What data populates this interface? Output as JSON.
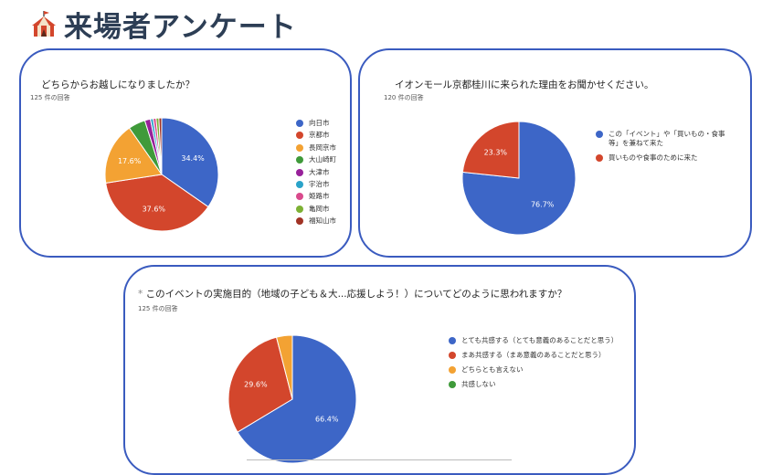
{
  "page": {
    "title": "来場者アンケート"
  },
  "chart_data": [
    {
      "type": "pie",
      "title": "どちらからお越しになりましたか？",
      "subtitle": "125 件の回答",
      "slices": [
        {
          "label": "向日市",
          "value": 34.4,
          "color": "#3d66c7",
          "show_label": true
        },
        {
          "label": "京都市",
          "value": 37.6,
          "color": "#d3462c",
          "show_label": true
        },
        {
          "label": "長岡京市",
          "value": 17.6,
          "color": "#f3a233",
          "show_label": true
        },
        {
          "label": "大山崎町",
          "value": 4.8,
          "color": "#3f9a3a",
          "show_label": false
        },
        {
          "label": "大津市",
          "value": 1.6,
          "color": "#98219a",
          "show_label": false
        },
        {
          "label": "宇治市",
          "value": 0.8,
          "color": "#2aa3c9",
          "show_label": false
        },
        {
          "label": "姫路市",
          "value": 0.8,
          "color": "#d94a8c",
          "show_label": false
        },
        {
          "label": "亀岡市",
          "value": 0.8,
          "color": "#7db134",
          "show_label": false
        },
        {
          "label": "福知山市",
          "value": 0.8,
          "color": "#a13325",
          "show_label": false
        }
      ]
    },
    {
      "type": "pie",
      "title": "イオンモール京都桂川に来られた理由をお聞かせください。",
      "subtitle": "120 件の回答",
      "slices": [
        {
          "label": "この「イベント」や「買いもの・食事等」を兼ねて来た",
          "value": 76.7,
          "color": "#3d66c7",
          "show_label": true
        },
        {
          "label": "買いものや食事のために来た",
          "value": 23.3,
          "color": "#d3462c",
          "show_label": true
        }
      ]
    },
    {
      "type": "pie",
      "title": "このイベントの実施目的（地域の子ども＆大...応援しよう！）についてどのように思われますか？",
      "subtitle": "125 件の回答",
      "slices": [
        {
          "label": "とても共感する（とても意義のあることだと思う）",
          "value": 66.4,
          "color": "#3d66c7",
          "show_label": true
        },
        {
          "label": "まあ共感する（まあ意義のあることだと思う）",
          "value": 29.6,
          "color": "#d3462c",
          "show_label": true
        },
        {
          "label": "どちらとも言えない",
          "value": 4.0,
          "color": "#f3a233",
          "show_label": false
        },
        {
          "label": "共感しない",
          "value": 0.0,
          "color": "#3f9a3a",
          "show_label": false
        }
      ]
    }
  ]
}
